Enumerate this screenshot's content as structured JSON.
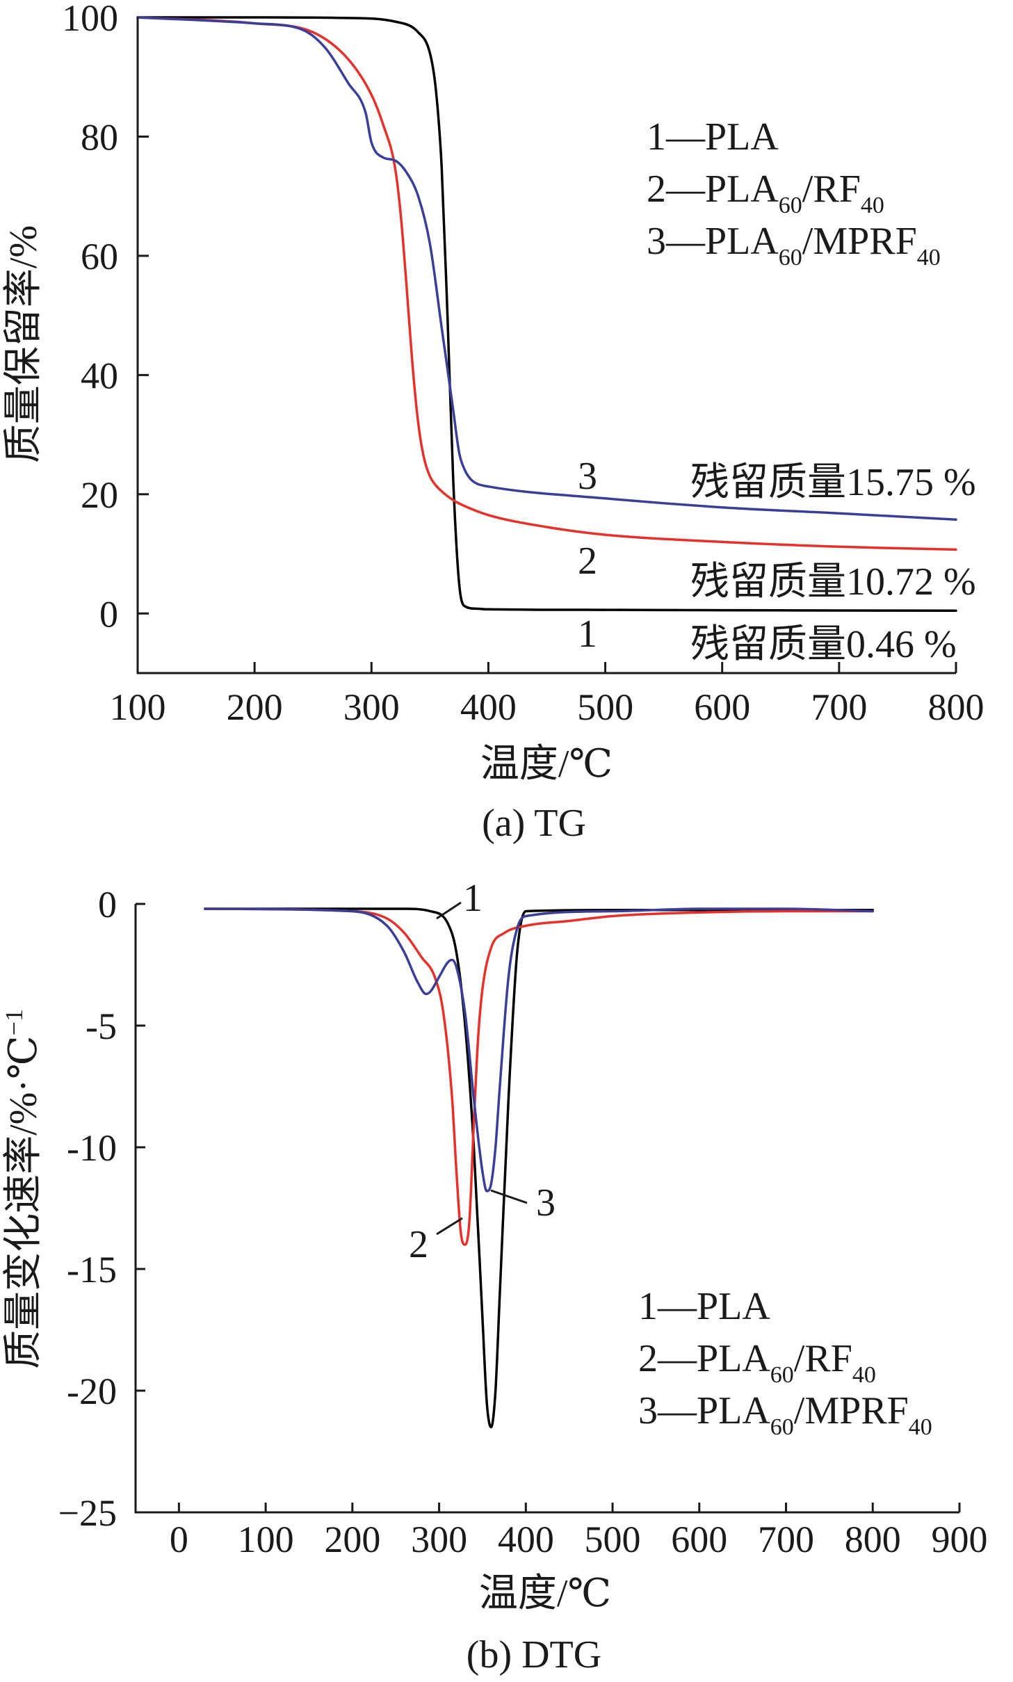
{
  "colors": {
    "PLA": "#000000",
    "PLA60_RF40": "#e8302a",
    "PLA60_MPRF40": "#3a3e98",
    "axis": "#1a1a1a"
  },
  "chart_data": [
    {
      "type": "line",
      "panel": "a",
      "caption": "(a) TG",
      "xlabel": "温度/℃",
      "ylabel": "质量保留率/%",
      "xlim": [
        100,
        800
      ],
      "ylim": [
        -10,
        100
      ],
      "xticks": [
        "100",
        "200",
        "300",
        "400",
        "500",
        "600",
        "700",
        "800"
      ],
      "yticks": [
        "0",
        "20",
        "40",
        "60",
        "80",
        "100"
      ],
      "legend": {
        "placement": "top-right",
        "entries": [
          {
            "num": "1—",
            "base": "PLA",
            "sub1": "",
            "mid": "",
            "sub2": ""
          },
          {
            "num": "2—",
            "base": "PLA",
            "sub1": "60",
            "mid": "/RF",
            "sub2": "40"
          },
          {
            "num": "3—",
            "base": "PLA",
            "sub1": "60",
            "mid": "/MPRF",
            "sub2": "40"
          }
        ]
      },
      "curve_labels": [
        "1",
        "2",
        "3"
      ],
      "annotations": [
        "残留质量15.75 %",
        "残留质量10.72 %",
        "残留质量0.46 %"
      ],
      "series": [
        {
          "id": "1",
          "color_key": "PLA",
          "x": [
            100,
            200,
            280,
            320,
            340,
            350,
            355,
            360,
            365,
            370,
            375,
            380,
            390,
            400,
            500,
            600,
            700,
            800
          ],
          "y": [
            100,
            100,
            99.9,
            99.3,
            97.5,
            94,
            88,
            75,
            50,
            22,
            5,
            1.2,
            0.8,
            0.7,
            0.6,
            0.55,
            0.5,
            0.46
          ]
        },
        {
          "id": "2",
          "color_key": "PLA60_RF40",
          "x": [
            100,
            200,
            250,
            280,
            300,
            310,
            320,
            325,
            330,
            335,
            340,
            345,
            350,
            355,
            360,
            370,
            380,
            400,
            450,
            500,
            600,
            700,
            800
          ],
          "y": [
            100,
            99,
            97.5,
            93,
            87,
            82,
            75,
            67,
            55,
            42,
            32,
            26,
            23,
            21.5,
            20.5,
            19,
            18,
            16.5,
            14.5,
            13.2,
            12,
            11.2,
            10.72
          ]
        },
        {
          "id": "3",
          "color_key": "PLA60_MPRF40",
          "x": [
            100,
            200,
            240,
            260,
            280,
            295,
            300,
            310,
            320,
            330,
            340,
            350,
            360,
            370,
            375,
            380,
            385,
            390,
            400,
            500,
            600,
            700,
            800
          ],
          "y": [
            100,
            99,
            98,
            95,
            89,
            84,
            79,
            76.5,
            76,
            74,
            70,
            62,
            48,
            34,
            27,
            24,
            22.5,
            21.8,
            21.3,
            19.3,
            17.8,
            16.8,
            15.75
          ]
        }
      ]
    },
    {
      "type": "line",
      "panel": "b",
      "caption": "(b) DTG",
      "xlabel": "温度/℃",
      "ylabel": "质量变化速率/%·℃",
      "ylabel_sup": "−1",
      "xlim": [
        -50,
        900
      ],
      "ylim": [
        -25,
        0
      ],
      "xticks": [
        "0",
        "100",
        "200",
        "300",
        "400",
        "500",
        "600",
        "700",
        "800",
        "900"
      ],
      "yticks": [
        "0",
        "-5",
        "-10",
        "-15",
        "-20",
        "−25"
      ],
      "legend": {
        "placement": "bottom-right",
        "entries": [
          {
            "num": "1—",
            "base": "PLA",
            "sub1": "",
            "mid": "",
            "sub2": ""
          },
          {
            "num": "2—",
            "base": "PLA",
            "sub1": "60",
            "mid": "/RF",
            "sub2": "40"
          },
          {
            "num": "3—",
            "base": "PLA",
            "sub1": "60",
            "mid": "/MPRF",
            "sub2": "40"
          }
        ]
      },
      "curve_labels": [
        "1",
        "2",
        "3"
      ],
      "series": [
        {
          "id": "1",
          "color_key": "PLA",
          "x": [
            30,
            200,
            260,
            290,
            310,
            320,
            330,
            340,
            350,
            355,
            360,
            365,
            370,
            380,
            390,
            400,
            500,
            600,
            700,
            800
          ],
          "y": [
            -0.2,
            -0.2,
            -0.2,
            -0.3,
            -0.8,
            -2,
            -5,
            -10,
            -17,
            -20.5,
            -21.5,
            -20,
            -16,
            -8,
            -2,
            -0.3,
            -0.25,
            -0.25,
            -0.25,
            -0.25
          ]
        },
        {
          "id": "2",
          "color_key": "PLA60_RF40",
          "x": [
            30,
            200,
            240,
            260,
            280,
            295,
            305,
            315,
            320,
            325,
            330,
            335,
            340,
            345,
            350,
            360,
            375,
            400,
            450,
            500,
            600,
            700,
            800
          ],
          "y": [
            -0.2,
            -0.3,
            -0.6,
            -1.2,
            -2.2,
            -3,
            -4.5,
            -8,
            -11,
            -13.5,
            -14,
            -13,
            -9,
            -5.5,
            -3.5,
            -1.8,
            -1.2,
            -0.9,
            -0.7,
            -0.5,
            -0.35,
            -0.3,
            -0.3
          ]
        },
        {
          "id": "3",
          "color_key": "PLA60_MPRF40",
          "x": [
            30,
            200,
            240,
            260,
            275,
            285,
            290,
            300,
            310,
            315,
            320,
            330,
            340,
            350,
            355,
            360,
            365,
            370,
            380,
            390,
            400,
            500,
            600,
            700,
            800
          ],
          "y": [
            -0.2,
            -0.3,
            -0.9,
            -2,
            -3.2,
            -3.7,
            -3.6,
            -3,
            -2.4,
            -2.3,
            -2.6,
            -4.5,
            -8,
            -11,
            -11.8,
            -11.5,
            -10,
            -7.5,
            -3,
            -1,
            -0.5,
            -0.3,
            -0.2,
            -0.2,
            -0.3
          ]
        }
      ]
    }
  ]
}
